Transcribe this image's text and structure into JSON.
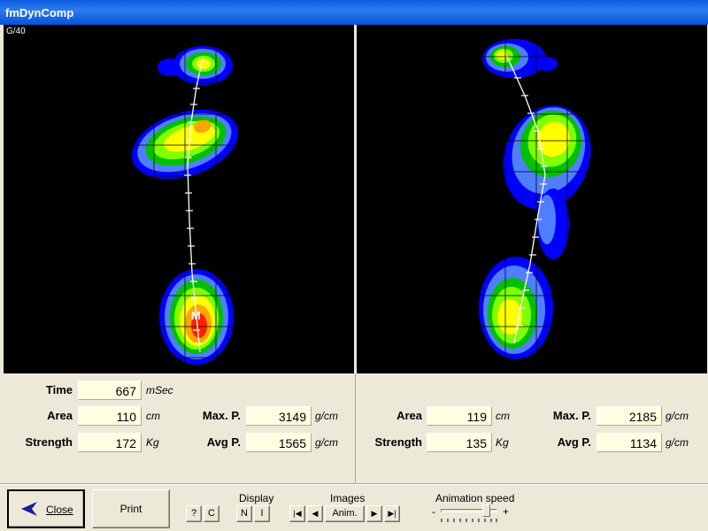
{
  "window": {
    "title": "fmDynComp"
  },
  "left_pane": {
    "corner_label": "G/40",
    "marker": "M"
  },
  "left_panel": {
    "time": {
      "label": "Time",
      "value": "667",
      "unit": "mSec"
    },
    "area": {
      "label": "Area",
      "value": "110",
      "unit": "cm"
    },
    "strength": {
      "label": "Strength",
      "value": "172",
      "unit": "Kg"
    },
    "max_p": {
      "label": "Max. P.",
      "value": "3149",
      "unit": "g/cm"
    },
    "avg_p": {
      "label": "Avg P.",
      "value": "1565",
      "unit": "g/cm"
    }
  },
  "right_panel": {
    "area": {
      "label": "Area",
      "value": "119",
      "unit": "cm"
    },
    "strength": {
      "label": "Strength",
      "value": "135",
      "unit": "Kg"
    },
    "max_p": {
      "label": "Max. P.",
      "value": "2185",
      "unit": "g/cm"
    },
    "avg_p": {
      "label": "Avg P.",
      "value": "1134",
      "unit": "g/cm"
    }
  },
  "toolbar": {
    "close_label": "Close",
    "print_label": "Print",
    "display_title": "Display",
    "display_buttons": {
      "help": "?",
      "c": "C",
      "n": "N",
      "i": "I"
    },
    "images_title": "Images",
    "images_buttons": {
      "first": "|◀",
      "prev": "◀",
      "anim": "Anim.",
      "next": "▶",
      "last": "▶|"
    },
    "anim_speed_title": "Animation speed",
    "anim_speed_minus": "-",
    "anim_speed_plus": "+",
    "anim_speed_level": 0.85
  },
  "colors": {
    "heatmap_low": "#0000ff",
    "heatmap_mid": "#00ff00",
    "heatmap_high": "#ffff00",
    "heatmap_peak": "#ff0000",
    "title_bar": "#0a5ae0",
    "value_field": "#ffffe1"
  }
}
